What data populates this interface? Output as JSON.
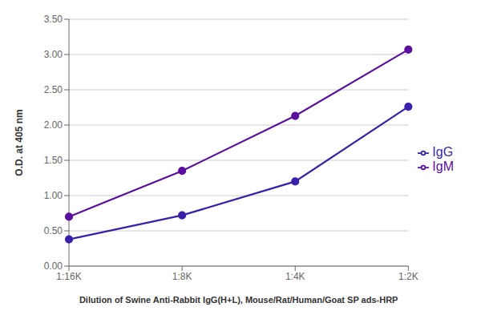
{
  "chart_data": {
    "type": "line",
    "categories": [
      "1:16K",
      "1:8K",
      "1:4K",
      "1:2K"
    ],
    "series": [
      {
        "name": "IgG",
        "color": "#3a1faa",
        "values": [
          0.38,
          0.72,
          1.2,
          2.26
        ],
        "marker": "circle"
      },
      {
        "name": "IgM",
        "color": "#5b0fa0",
        "values": [
          0.7,
          1.35,
          2.13,
          3.07
        ],
        "marker": "circle"
      }
    ],
    "xlabel": "Dilution of Swine Anti-Rabbit IgG(H+L), Mouse/Rat/Human/Goat SP ads-HRP",
    "ylabel": "O.D. at 405 nm",
    "ylim": [
      0.0,
      3.5
    ],
    "yticks": [
      {
        "value": 0.0,
        "label": "0.00"
      },
      {
        "value": 0.5,
        "label": "0.50"
      },
      {
        "value": 1.0,
        "label": "1.00"
      },
      {
        "value": 1.5,
        "label": "1.50"
      },
      {
        "value": 2.0,
        "label": "2.00"
      },
      {
        "value": 2.5,
        "label": "2.50"
      },
      {
        "value": 3.0,
        "label": "3.00"
      },
      {
        "value": 3.5,
        "label": "3.50"
      }
    ],
    "grid": true,
    "legend": "right"
  }
}
